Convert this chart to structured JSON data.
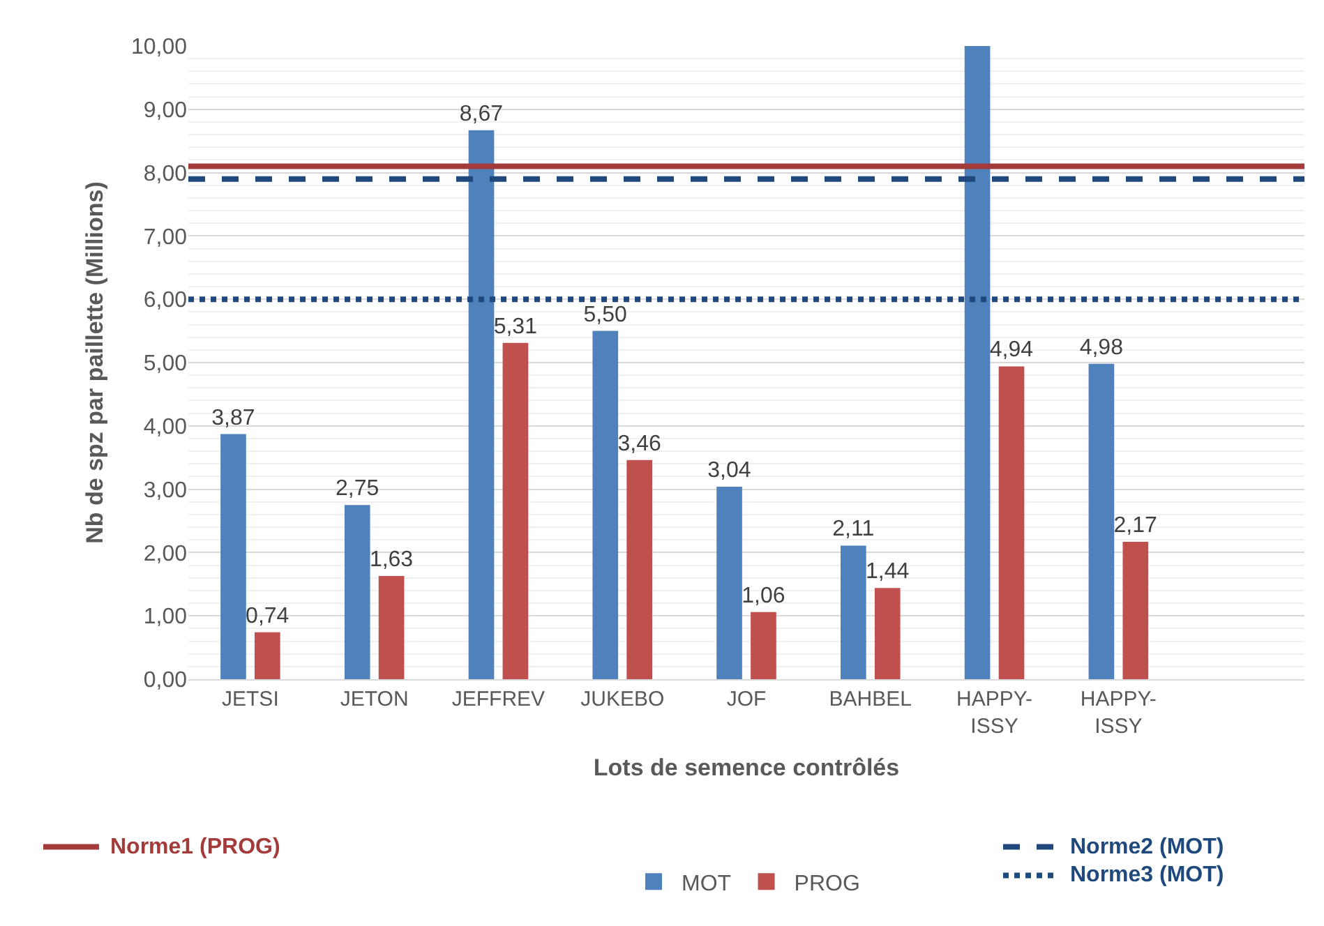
{
  "chart_data": {
    "type": "bar",
    "xlabel": "Lots de semence contrôlés",
    "ylabel": "Nb de spz par paillette (Millions)",
    "categories": [
      "JETSI",
      "JETON",
      "JEFFREV",
      "JUKEBO",
      "JOF",
      "BAHBEL",
      "HAPPY-ISSY",
      "HAPPY-ISSY",
      null
    ],
    "series": [
      {
        "name": "MOT",
        "color": "#4f81bd",
        "values": [
          3.87,
          2.75,
          8.67,
          5.5,
          3.04,
          2.11,
          10.0,
          4.98,
          null
        ],
        "value_labels": [
          "3,87",
          "2,75",
          "8,67",
          "5,50",
          "3,04",
          "2,11",
          null,
          "4,98",
          null
        ]
      },
      {
        "name": "PROG",
        "color": "#c0504d",
        "values": [
          0.74,
          1.63,
          5.31,
          3.46,
          1.06,
          1.44,
          4.94,
          2.17,
          null
        ],
        "value_labels": [
          "0,74",
          "1,63",
          "5,31",
          "3,46",
          "1,06",
          "1,44",
          "4,94",
          "2,17",
          null
        ]
      }
    ],
    "ylim": [
      0,
      10
    ],
    "yticks": [
      {
        "value": 0,
        "label": "0,00"
      },
      {
        "value": 1,
        "label": "1,00"
      },
      {
        "value": 2,
        "label": "2,00"
      },
      {
        "value": 3,
        "label": "3,00"
      },
      {
        "value": 4,
        "label": "4,00"
      },
      {
        "value": 5,
        "label": "5,00"
      },
      {
        "value": 6,
        "label": "6,00"
      },
      {
        "value": 7,
        "label": "7,00"
      },
      {
        "value": 8,
        "label": "8,00"
      },
      {
        "value": 9,
        "label": "9,00"
      },
      {
        "value": 10,
        "label": "10,00"
      }
    ],
    "ref_lines": [
      {
        "axis": "y",
        "value": 8.1,
        "label": "Norme1 (PROG)",
        "color": "#a33b3b",
        "line_style": "solid"
      },
      {
        "axis": "y",
        "value": 7.9,
        "label": "Norme2 (MOT)",
        "color": "#1f497d",
        "line_style": "dashed"
      },
      {
        "axis": "y",
        "value": 6.0,
        "label": "Norme3 (MOT)",
        "color": "#1f497d",
        "line_style": "dotted"
      }
    ],
    "grid": "y",
    "legend": "bottom"
  }
}
